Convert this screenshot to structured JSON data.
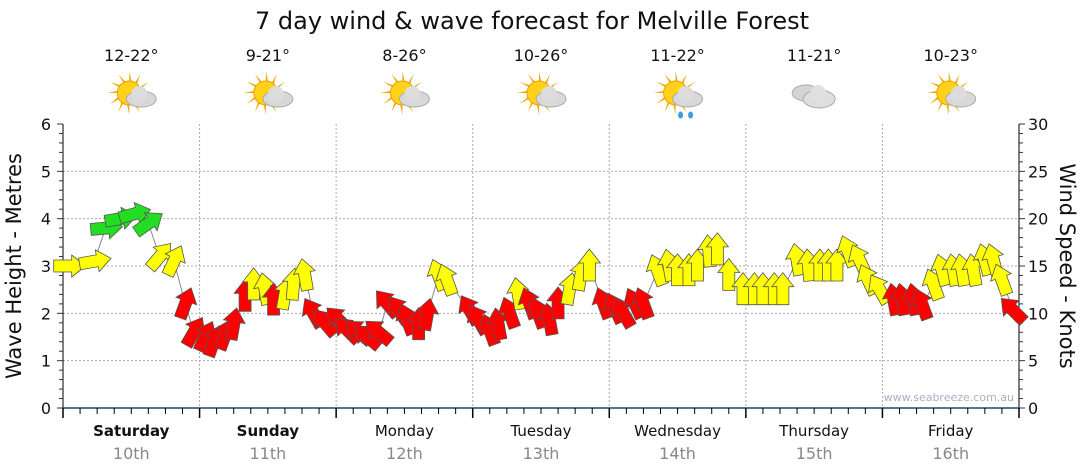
{
  "chart_data": {
    "type": "scatter",
    "title": "7 day wind & wave forecast for Melville Forest",
    "ylabel": "Wave Height - Metres",
    "y2label": "Wind Speed - Knots",
    "ylim": [
      0,
      6
    ],
    "y2lim": [
      0,
      30
    ],
    "yticks": [
      "0",
      "1",
      "2",
      "3",
      "4",
      "5",
      "6"
    ],
    "y2ticks": [
      "0",
      "5",
      "10",
      "15",
      "20",
      "25",
      "30"
    ],
    "xlim_hours": [
      0,
      168
    ],
    "grid": true,
    "watermark": "www.seabreeze.com.au",
    "days": [
      {
        "name": "Saturday",
        "date": "10th",
        "temp": "12-22°",
        "icon": "sun-cloud-icon",
        "bold": true
      },
      {
        "name": "Sunday",
        "date": "11th",
        "temp": "9-21°",
        "icon": "sun-cloud-icon",
        "bold": true
      },
      {
        "name": "Monday",
        "date": "12th",
        "temp": "8-26°",
        "icon": "sun-cloud-icon",
        "bold": false
      },
      {
        "name": "Tuesday",
        "date": "13th",
        "temp": "10-26°",
        "icon": "sun-cloud-icon",
        "bold": false
      },
      {
        "name": "Wednesday",
        "date": "14th",
        "temp": "11-22°",
        "icon": "sun-cloud-rain-icon",
        "bold": false
      },
      {
        "name": "Thursday",
        "date": "15th",
        "temp": "11-21°",
        "icon": "cloud-icon",
        "bold": false
      },
      {
        "name": "Friday",
        "date": "16th",
        "temp": "10-23°",
        "icon": "sun-cloud-icon",
        "bold": false
      }
    ],
    "color_scale": {
      "green_min_knots": 19,
      "yellow_min_knots": 12,
      "green": "#22dd22",
      "yellow": "#ffff00",
      "red": "#ff0000"
    },
    "wind_series_fields": [
      "hour",
      "knots",
      "direction_deg_ccw_from_east"
    ],
    "wind": [
      [
        1,
        15,
        0
      ],
      [
        5.5,
        15.5,
        10
      ],
      [
        7.5,
        19,
        5
      ],
      [
        10,
        20,
        10
      ],
      [
        12.5,
        20.5,
        15
      ],
      [
        15,
        19.5,
        35
      ],
      [
        17,
        16,
        50
      ],
      [
        19.5,
        15.5,
        65
      ],
      [
        21.5,
        11,
        70
      ],
      [
        23,
        8,
        60
      ],
      [
        25,
        7.5,
        65
      ],
      [
        26.5,
        7,
        70
      ],
      [
        28.5,
        7.7,
        70
      ],
      [
        30,
        8.8,
        80
      ],
      [
        32,
        11.8,
        90
      ],
      [
        33.5,
        13,
        90
      ],
      [
        35.5,
        12.5,
        100
      ],
      [
        37,
        11.4,
        90
      ],
      [
        39,
        12,
        80
      ],
      [
        40.5,
        13,
        85
      ],
      [
        42.5,
        14,
        100
      ],
      [
        44,
        10,
        120
      ],
      [
        46,
        9,
        130
      ],
      [
        48.5,
        9.3,
        135
      ],
      [
        50,
        8.2,
        135
      ],
      [
        52,
        8,
        140
      ],
      [
        53.5,
        7.5,
        140
      ],
      [
        55.5,
        8,
        140
      ],
      [
        57,
        11,
        130
      ],
      [
        59,
        10.3,
        125
      ],
      [
        60.5,
        9.3,
        110
      ],
      [
        62.5,
        8.8,
        90
      ],
      [
        64,
        9.8,
        80
      ],
      [
        66,
        14,
        110
      ],
      [
        67.5,
        13.5,
        110
      ],
      [
        71.5,
        10.3,
        120
      ],
      [
        73,
        9.3,
        120
      ],
      [
        75,
        8.2,
        110
      ],
      [
        76.5,
        8.8,
        100
      ],
      [
        78.5,
        10,
        110
      ],
      [
        80,
        12,
        100
      ],
      [
        82,
        11,
        110
      ],
      [
        83.5,
        10,
        110
      ],
      [
        85.5,
        9.3,
        100
      ],
      [
        87,
        11,
        90
      ],
      [
        89,
        12.5,
        80
      ],
      [
        91,
        14,
        80
      ],
      [
        92.5,
        15,
        90
      ],
      [
        95,
        11,
        110
      ],
      [
        97,
        10.5,
        115
      ],
      [
        98.5,
        10,
        120
      ],
      [
        100.5,
        11,
        115
      ],
      [
        102,
        11,
        110
      ],
      [
        104.5,
        14.5,
        110
      ],
      [
        106.5,
        15,
        100
      ],
      [
        108,
        14.5,
        90
      ],
      [
        110,
        14.5,
        90
      ],
      [
        111.5,
        15,
        90
      ],
      [
        113.5,
        16.5,
        95
      ],
      [
        115,
        16.7,
        90
      ],
      [
        117,
        14,
        90
      ],
      [
        119.5,
        12.5,
        90
      ],
      [
        121.5,
        12.5,
        90
      ],
      [
        123,
        12.5,
        90
      ],
      [
        125,
        12.5,
        90
      ],
      [
        126.5,
        12.5,
        90
      ],
      [
        129,
        15.6,
        100
      ],
      [
        131,
        15,
        95
      ],
      [
        133,
        15,
        90
      ],
      [
        134.5,
        15,
        90
      ],
      [
        136,
        15,
        90
      ],
      [
        138,
        16.5,
        110
      ],
      [
        140,
        15.6,
        115
      ],
      [
        141.5,
        13.5,
        115
      ],
      [
        143.5,
        12.5,
        120
      ],
      [
        146,
        11.4,
        100
      ],
      [
        147.5,
        11.4,
        100
      ],
      [
        149.5,
        11.4,
        100
      ],
      [
        151,
        10.9,
        110
      ],
      [
        153,
        13,
        110
      ],
      [
        154.5,
        14.5,
        105
      ],
      [
        156.5,
        14.5,
        100
      ],
      [
        158,
        14.5,
        100
      ],
      [
        160,
        14.5,
        100
      ],
      [
        162,
        15.6,
        105
      ],
      [
        163.5,
        15.6,
        105
      ],
      [
        165,
        13.5,
        110
      ],
      [
        167,
        10.3,
        135
      ]
    ]
  }
}
